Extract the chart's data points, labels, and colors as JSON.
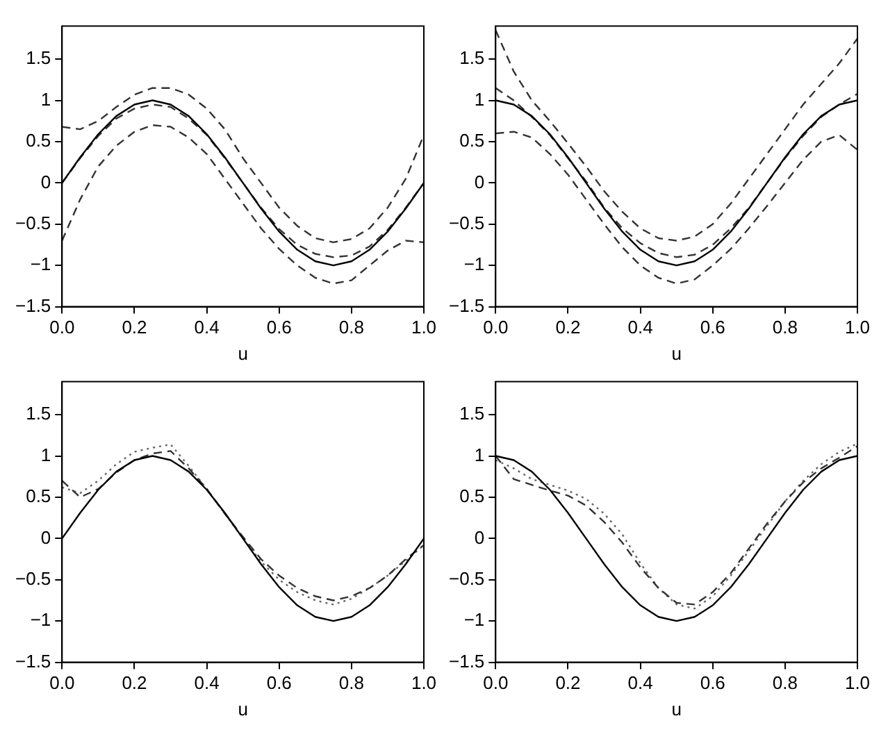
{
  "chart_data": [
    {
      "type": "line",
      "xlabel": "u",
      "x": [
        0,
        0.05,
        0.1,
        0.15,
        0.2,
        0.25,
        0.3,
        0.35,
        0.4,
        0.45,
        0.5,
        0.55,
        0.6,
        0.65,
        0.7,
        0.75,
        0.8,
        0.85,
        0.9,
        0.95,
        1
      ],
      "xlim": [
        0,
        1
      ],
      "xticks": [
        {
          "value": 0,
          "label": "0.0"
        },
        {
          "value": 0.2,
          "label": "0.2"
        },
        {
          "value": 0.4,
          "label": "0.4"
        },
        {
          "value": 0.6,
          "label": "0.6"
        },
        {
          "value": 0.8,
          "label": "0.8"
        },
        {
          "value": 1,
          "label": "1.0"
        }
      ],
      "ylim": [
        -1.5,
        1.9
      ],
      "yticks": [
        {
          "value": -1.5,
          "label": "−1.5"
        },
        {
          "value": -1,
          "label": "−1"
        },
        {
          "value": -0.5,
          "label": "−0.5"
        },
        0,
        0.5,
        1,
        1.5
      ],
      "grid": false,
      "legend": false,
      "marker": "none",
      "series": [
        {
          "color": "#000000",
          "line_style": "solid",
          "values": [
            0,
            0.31,
            0.59,
            0.81,
            0.95,
            1,
            0.95,
            0.81,
            0.59,
            0.31,
            0,
            -0.31,
            -0.59,
            -0.81,
            -0.95,
            -1,
            -0.95,
            -0.81,
            -0.59,
            -0.31,
            0
          ]
        },
        {
          "color": "#333333",
          "line_style": "dashed",
          "values": [
            0,
            0.3,
            0.57,
            0.78,
            0.9,
            0.95,
            0.92,
            0.78,
            0.58,
            0.3,
            0,
            -0.3,
            -0.56,
            -0.75,
            -0.86,
            -0.9,
            -0.88,
            -0.77,
            -0.57,
            -0.3,
            0
          ]
        },
        {
          "color": "#333333",
          "line_style": "dashed",
          "values": [
            0.68,
            0.65,
            0.75,
            0.92,
            1.07,
            1.15,
            1.15,
            1.07,
            0.9,
            0.65,
            0.3,
            0,
            -0.3,
            -0.52,
            -0.67,
            -0.72,
            -0.68,
            -0.55,
            -0.3,
            0.05,
            0.58
          ]
        },
        {
          "color": "#333333",
          "line_style": "dashed",
          "values": [
            -0.7,
            -0.2,
            0.2,
            0.45,
            0.62,
            0.7,
            0.68,
            0.55,
            0.35,
            0.05,
            -0.25,
            -0.55,
            -0.8,
            -1,
            -1.15,
            -1.22,
            -1.18,
            -1,
            -0.82,
            -0.7,
            -0.72
          ]
        }
      ]
    },
    {
      "type": "line",
      "xlabel": "u",
      "x": [
        0,
        0.05,
        0.1,
        0.15,
        0.2,
        0.25,
        0.3,
        0.35,
        0.4,
        0.45,
        0.5,
        0.55,
        0.6,
        0.65,
        0.7,
        0.75,
        0.8,
        0.85,
        0.9,
        0.95,
        1
      ],
      "xlim": [
        0,
        1
      ],
      "xticks": [
        {
          "value": 0,
          "label": "0.0"
        },
        {
          "value": 0.2,
          "label": "0.2"
        },
        {
          "value": 0.4,
          "label": "0.4"
        },
        {
          "value": 0.6,
          "label": "0.6"
        },
        {
          "value": 0.8,
          "label": "0.8"
        },
        {
          "value": 1,
          "label": "1.0"
        }
      ],
      "ylim": [
        -1.5,
        1.9
      ],
      "yticks": [
        {
          "value": -1.5,
          "label": "−1.5"
        },
        {
          "value": -1,
          "label": "−1"
        },
        {
          "value": -0.5,
          "label": "−0.5"
        },
        0,
        0.5,
        1,
        1.5
      ],
      "grid": false,
      "legend": false,
      "marker": "none",
      "series": [
        {
          "color": "#000000",
          "line_style": "solid",
          "values": [
            1,
            0.95,
            0.81,
            0.59,
            0.31,
            0,
            -0.31,
            -0.59,
            -0.81,
            -0.95,
            -1,
            -0.95,
            -0.81,
            -0.59,
            -0.31,
            0,
            0.31,
            0.59,
            0.81,
            0.95,
            1
          ]
        },
        {
          "color": "#333333",
          "line_style": "dashed",
          "values": [
            1.15,
            1,
            0.8,
            0.58,
            0.3,
            0.02,
            -0.3,
            -0.55,
            -0.73,
            -0.85,
            -0.9,
            -0.87,
            -0.75,
            -0.55,
            -0.3,
            0,
            0.3,
            0.57,
            0.8,
            0.95,
            1.08
          ]
        },
        {
          "color": "#333333",
          "line_style": "dashed",
          "values": [
            1.85,
            1.35,
            1,
            0.75,
            0.48,
            0.2,
            -0.1,
            -0.35,
            -0.55,
            -0.67,
            -0.7,
            -0.65,
            -0.5,
            -0.25,
            0.05,
            0.35,
            0.65,
            0.95,
            1.2,
            1.45,
            1.75
          ]
        },
        {
          "color": "#333333",
          "line_style": "dashed",
          "values": [
            0.6,
            0.62,
            0.55,
            0.35,
            0.1,
            -0.2,
            -0.5,
            -0.78,
            -1,
            -1.15,
            -1.22,
            -1.17,
            -1,
            -0.8,
            -0.55,
            -0.28,
            0,
            0.28,
            0.5,
            0.58,
            0.4
          ]
        }
      ]
    },
    {
      "type": "line",
      "xlabel": "u",
      "x": [
        0,
        0.05,
        0.1,
        0.15,
        0.2,
        0.25,
        0.3,
        0.35,
        0.4,
        0.45,
        0.5,
        0.55,
        0.6,
        0.65,
        0.7,
        0.75,
        0.8,
        0.85,
        0.9,
        0.95,
        1
      ],
      "xlim": [
        0,
        1
      ],
      "xticks": [
        {
          "value": 0,
          "label": "0.0"
        },
        {
          "value": 0.2,
          "label": "0.2"
        },
        {
          "value": 0.4,
          "label": "0.4"
        },
        {
          "value": 0.6,
          "label": "0.6"
        },
        {
          "value": 0.8,
          "label": "0.8"
        },
        {
          "value": 1,
          "label": "1.0"
        }
      ],
      "ylim": [
        -1.5,
        1.9
      ],
      "yticks": [
        {
          "value": -1.5,
          "label": "−1.5"
        },
        {
          "value": -1,
          "label": "−1"
        },
        {
          "value": -0.5,
          "label": "−0.5"
        },
        0,
        0.5,
        1,
        1.5
      ],
      "grid": false,
      "legend": false,
      "marker": "none",
      "series": [
        {
          "color": "#000000",
          "line_style": "solid",
          "values": [
            0,
            0.31,
            0.59,
            0.81,
            0.95,
            1,
            0.95,
            0.81,
            0.59,
            0.31,
            0,
            -0.31,
            -0.59,
            -0.81,
            -0.95,
            -1,
            -0.95,
            -0.81,
            -0.59,
            -0.31,
            0
          ]
        },
        {
          "color": "#333333",
          "line_style": "dashed",
          "values": [
            0.7,
            0.5,
            0.6,
            0.8,
            0.95,
            1.03,
            1.06,
            0.85,
            0.6,
            0.3,
            0.02,
            -0.25,
            -0.45,
            -0.6,
            -0.7,
            -0.75,
            -0.7,
            -0.6,
            -0.45,
            -0.25,
            -0.08
          ]
        },
        {
          "color": "#666666",
          "line_style": "dotted",
          "values": [
            0.62,
            0.55,
            0.7,
            0.9,
            1.05,
            1.1,
            1.14,
            0.88,
            0.6,
            0.3,
            0,
            -0.28,
            -0.5,
            -0.65,
            -0.75,
            -0.8,
            -0.73,
            -0.6,
            -0.45,
            -0.27,
            -0.08
          ]
        }
      ]
    },
    {
      "type": "line",
      "xlabel": "u",
      "x": [
        0,
        0.05,
        0.1,
        0.15,
        0.2,
        0.25,
        0.3,
        0.35,
        0.4,
        0.45,
        0.5,
        0.55,
        0.6,
        0.65,
        0.7,
        0.75,
        0.8,
        0.85,
        0.9,
        0.95,
        1
      ],
      "xlim": [
        0,
        1
      ],
      "xticks": [
        {
          "value": 0,
          "label": "0.0"
        },
        {
          "value": 0.2,
          "label": "0.2"
        },
        {
          "value": 0.4,
          "label": "0.4"
        },
        {
          "value": 0.6,
          "label": "0.6"
        },
        {
          "value": 0.8,
          "label": "0.8"
        },
        {
          "value": 1,
          "label": "1.0"
        }
      ],
      "ylim": [
        -1.5,
        1.9
      ],
      "yticks": [
        {
          "value": -1.5,
          "label": "−1.5"
        },
        {
          "value": -1,
          "label": "−1"
        },
        {
          "value": -0.5,
          "label": "−0.5"
        },
        0,
        0.5,
        1,
        1.5
      ],
      "grid": false,
      "legend": false,
      "marker": "none",
      "series": [
        {
          "color": "#000000",
          "line_style": "solid",
          "values": [
            1,
            0.95,
            0.81,
            0.59,
            0.31,
            0,
            -0.31,
            -0.59,
            -0.81,
            -0.95,
            -1,
            -0.95,
            -0.81,
            -0.59,
            -0.31,
            0,
            0.31,
            0.59,
            0.81,
            0.95,
            1
          ]
        },
        {
          "color": "#333333",
          "line_style": "dashed",
          "values": [
            1,
            0.72,
            0.65,
            0.58,
            0.52,
            0.4,
            0.2,
            -0.05,
            -0.35,
            -0.6,
            -0.78,
            -0.8,
            -0.65,
            -0.42,
            -0.12,
            0.18,
            0.45,
            0.68,
            0.85,
            0.98,
            1.12
          ]
        },
        {
          "color": "#666666",
          "line_style": "dotted",
          "values": [
            0.95,
            0.85,
            0.72,
            0.65,
            0.58,
            0.48,
            0.3,
            0.05,
            -0.3,
            -0.6,
            -0.8,
            -0.85,
            -0.7,
            -0.45,
            -0.15,
            0.15,
            0.45,
            0.7,
            0.9,
            1.05,
            1.15
          ]
        }
      ]
    }
  ]
}
